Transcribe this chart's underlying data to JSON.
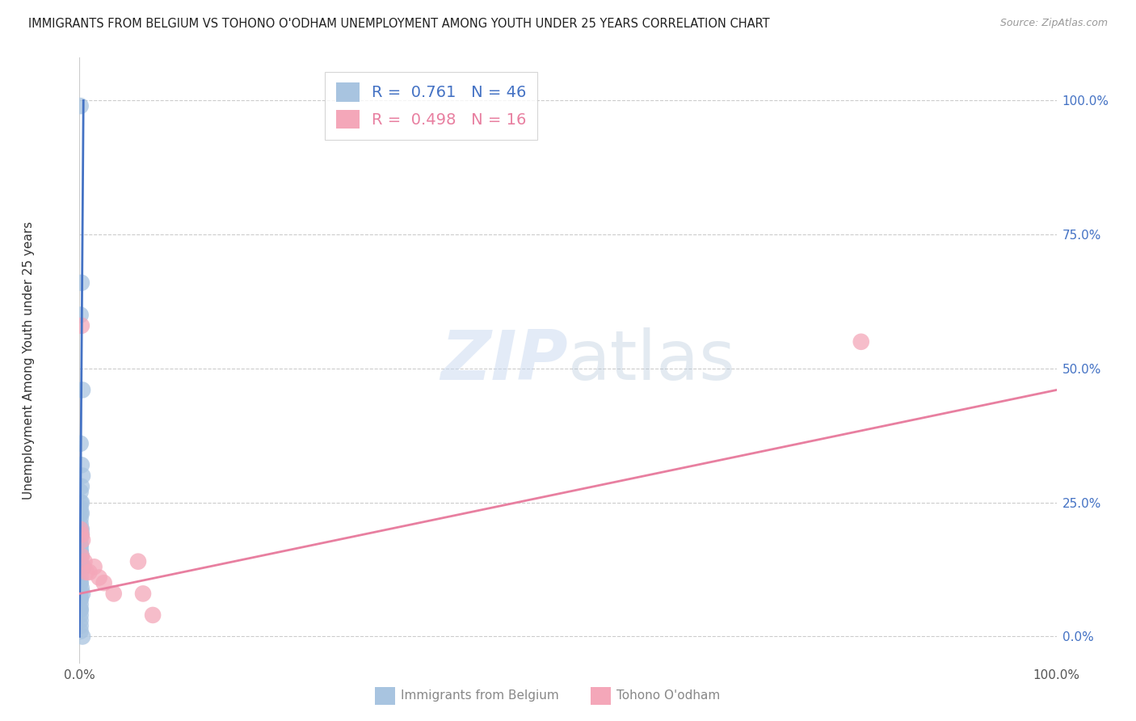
{
  "title": "IMMIGRANTS FROM BELGIUM VS TOHONO O'ODHAM UNEMPLOYMENT AMONG YOUTH UNDER 25 YEARS CORRELATION CHART",
  "source": "Source: ZipAtlas.com",
  "ylabel": "Unemployment Among Youth under 25 years",
  "legend1_label": "Immigrants from Belgium",
  "legend2_label": "Tohono O'odham",
  "R1": 0.761,
  "N1": 46,
  "R2": 0.498,
  "N2": 16,
  "color_blue": "#a8c4e0",
  "color_pink": "#f4a7b9",
  "color_blue_line": "#4472c4",
  "color_pink_line": "#e87fa0",
  "watermark_zip": "ZIP",
  "watermark_atlas": "atlas",
  "blue_scatter_x": [
    0.001,
    0.002,
    0.001,
    0.003,
    0.001,
    0.002,
    0.003,
    0.002,
    0.001,
    0.001,
    0.002,
    0.001,
    0.001,
    0.002,
    0.001,
    0.001,
    0.001,
    0.002,
    0.002,
    0.001,
    0.001,
    0.001,
    0.001,
    0.001,
    0.002,
    0.001,
    0.001,
    0.001,
    0.004,
    0.001,
    0.001,
    0.001,
    0.001,
    0.002,
    0.001,
    0.003,
    0.001,
    0.001,
    0.001,
    0.001,
    0.001,
    0.001,
    0.001,
    0.001,
    0.001,
    0.003
  ],
  "blue_scatter_y": [
    0.99,
    0.66,
    0.6,
    0.46,
    0.36,
    0.32,
    0.3,
    0.28,
    0.27,
    0.25,
    0.25,
    0.24,
    0.23,
    0.23,
    0.22,
    0.21,
    0.2,
    0.2,
    0.19,
    0.18,
    0.17,
    0.17,
    0.16,
    0.16,
    0.15,
    0.14,
    0.14,
    0.13,
    0.13,
    0.12,
    0.11,
    0.1,
    0.1,
    0.09,
    0.08,
    0.08,
    0.07,
    0.07,
    0.06,
    0.05,
    0.05,
    0.04,
    0.03,
    0.02,
    0.01,
    0.0
  ],
  "pink_scatter_x": [
    0.001,
    0.002,
    0.002,
    0.003,
    0.005,
    0.007,
    0.01,
    0.015,
    0.02,
    0.025,
    0.035,
    0.06,
    0.065,
    0.075,
    0.8,
    0.002
  ],
  "pink_scatter_y": [
    0.2,
    0.19,
    0.15,
    0.18,
    0.14,
    0.12,
    0.12,
    0.13,
    0.11,
    0.1,
    0.08,
    0.14,
    0.08,
    0.04,
    0.55,
    0.58
  ],
  "blue_line_x": [
    0.0,
    0.004
  ],
  "blue_line_y": [
    0.0,
    1.0
  ],
  "pink_line_x": [
    0.0,
    1.0
  ],
  "pink_line_y": [
    0.08,
    0.46
  ],
  "ytick_labels": [
    "100.0%",
    "75.0%",
    "50.0%",
    "25.0%",
    "0.0%"
  ],
  "ytick_values": [
    1.0,
    0.75,
    0.5,
    0.25,
    0.0
  ],
  "xtick_labels": [
    "0.0%",
    "100.0%"
  ],
  "xtick_values": [
    0.0,
    1.0
  ],
  "xlim": [
    0.0,
    1.0
  ],
  "ylim": [
    -0.05,
    1.08
  ]
}
